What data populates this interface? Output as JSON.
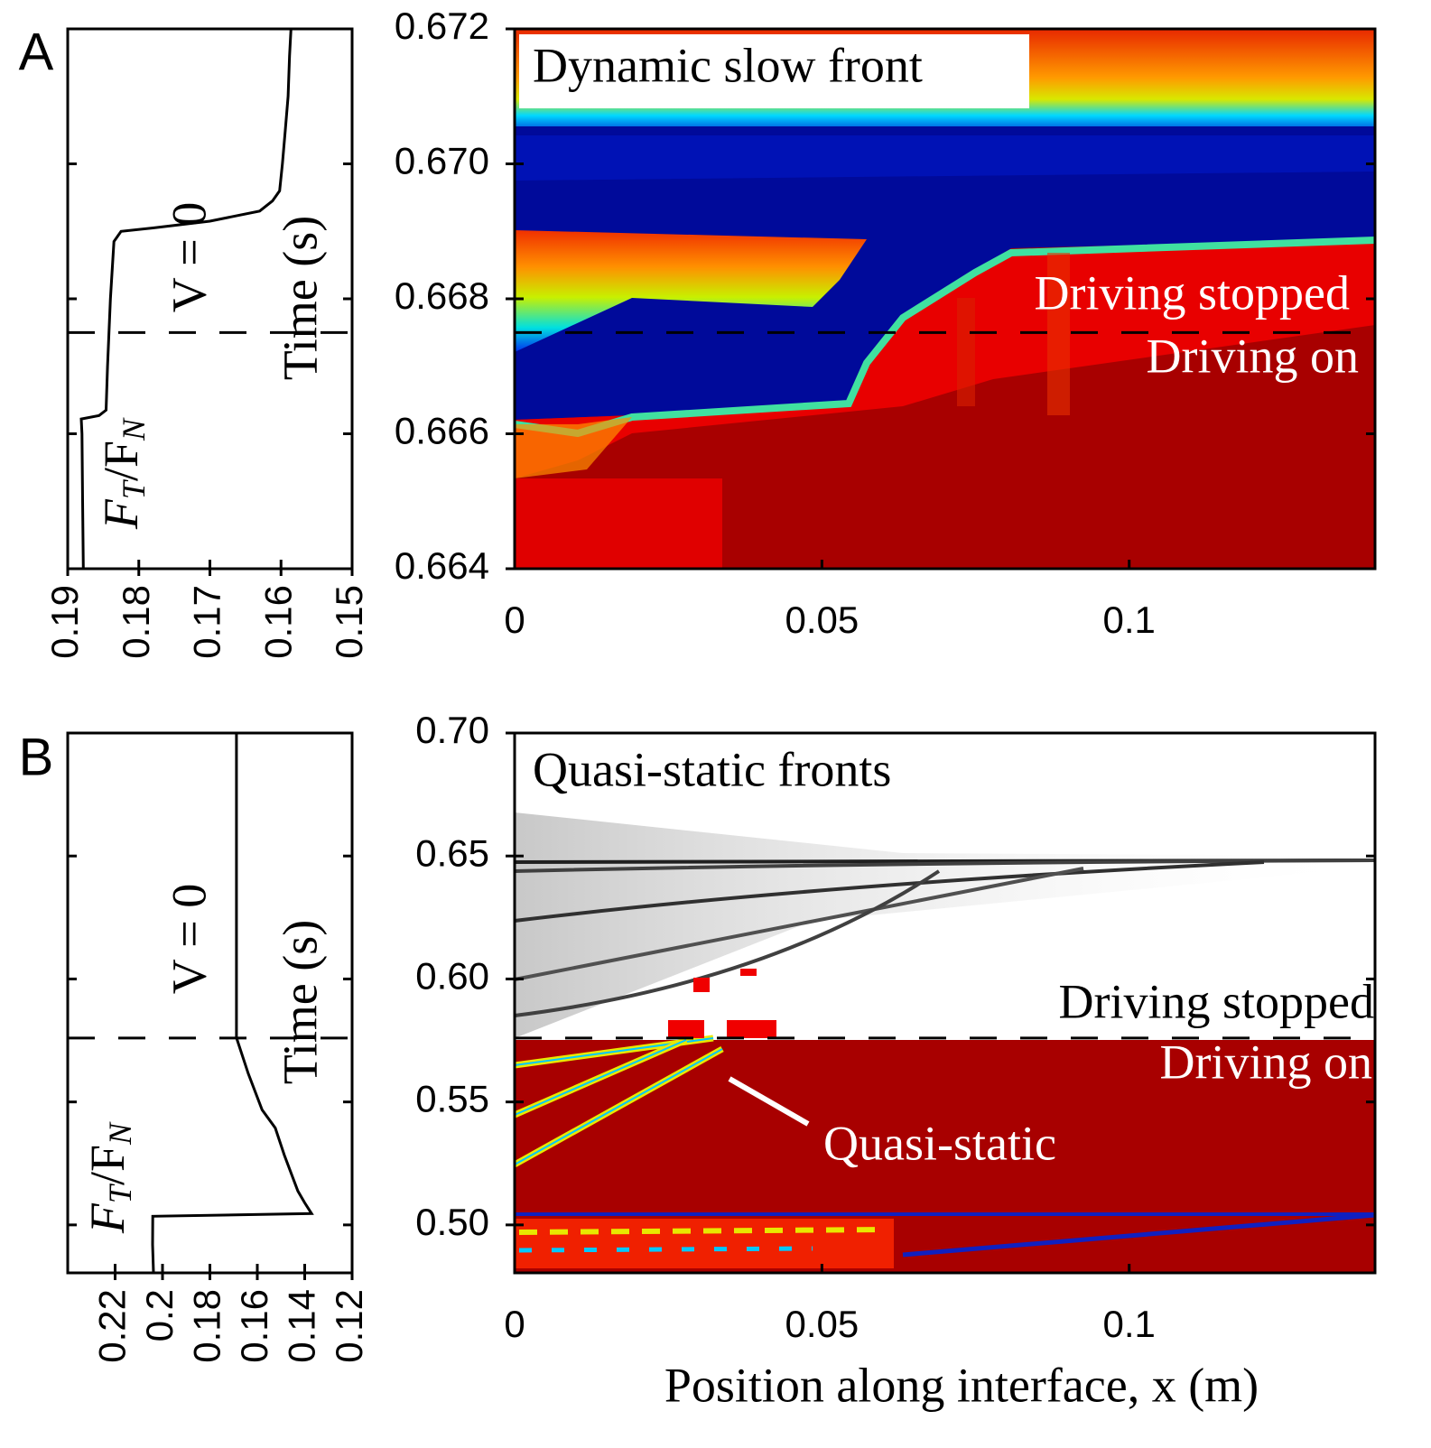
{
  "chart_data": [
    {
      "type": "line",
      "panel_label": "A",
      "xlabel": "FT/FN",
      "ylabel": "Time (s)",
      "annotation": "V = 0",
      "xlim": [
        0.19,
        0.15
      ],
      "xticks": [
        0.19,
        0.18,
        0.17,
        0.16,
        0.15
      ],
      "ylim": [
        0.664,
        0.672
      ],
      "hline": 0.6675,
      "series": [
        {
          "color": "#000000",
          "x": [
            0.1878,
            0.1879,
            0.188,
            0.1881,
            0.1856,
            0.1846,
            0.1844,
            0.184,
            0.1835,
            0.1825,
            0.178,
            0.17,
            0.163,
            0.1612,
            0.1602,
            0.1598,
            0.1594,
            0.159,
            0.1588,
            0.1586
          ],
          "y": [
            0.664,
            0.665,
            0.666,
            0.66622,
            0.66627,
            0.66635,
            0.667,
            0.668,
            0.66885,
            0.669,
            0.66905,
            0.66915,
            0.6693,
            0.66945,
            0.6696,
            0.67,
            0.6705,
            0.671,
            0.6716,
            0.672
          ]
        }
      ]
    },
    {
      "type": "heatmap",
      "title": "Dynamic slow front",
      "annotations": [
        "Driving stopped",
        "Driving on"
      ],
      "xlim": [
        0,
        0.14
      ],
      "xticks": [
        0,
        0.05,
        0.1
      ],
      "ylim": [
        0.664,
        0.672
      ],
      "yticks": [
        0.664,
        0.666,
        0.668,
        {
          "value": 0.67,
          "label": "0.670"
        },
        0.672
      ],
      "hline": 0.6675
    },
    {
      "type": "line",
      "panel_label": "B",
      "xlabel": "FT/FN",
      "ylabel": "Time (s)",
      "annotation": "V = 0",
      "xlim": [
        0.24,
        0.12
      ],
      "xticks": [
        0.22,
        0.2,
        0.18,
        0.16,
        0.14,
        0.12
      ],
      "ylim": [
        0.4805,
        0.7
      ],
      "hline": 0.576,
      "series": [
        {
          "color": "#000000",
          "x": [
            0.2038,
            0.2042,
            0.2041,
            0.1371,
            0.14,
            0.1429,
            0.1486,
            0.1524,
            0.158,
            0.1638,
            0.1688,
            0.1688
          ],
          "y": [
            0.4805,
            0.492,
            0.5035,
            0.5046,
            0.509,
            0.5138,
            0.5284,
            0.5394,
            0.5468,
            0.5615,
            0.5761,
            0.7
          ]
        }
      ]
    },
    {
      "type": "heatmap",
      "title": "Quasi-static fronts",
      "annotations": [
        "Driving stopped",
        "Driving on",
        "Quasi-static"
      ],
      "xlabel": "Position along interface, x (m)",
      "xlim": [
        0,
        0.14
      ],
      "xticks": [
        0,
        0.05,
        0.1
      ],
      "ylim": [
        0.4805,
        0.7
      ],
      "yticks": [
        {
          "value": 0.5,
          "label": "0.50"
        },
        0.55,
        {
          "value": 0.6,
          "label": "0.60"
        },
        0.65,
        {
          "value": 0.7,
          "label": "0.70"
        }
      ],
      "hline": 0.576
    }
  ]
}
